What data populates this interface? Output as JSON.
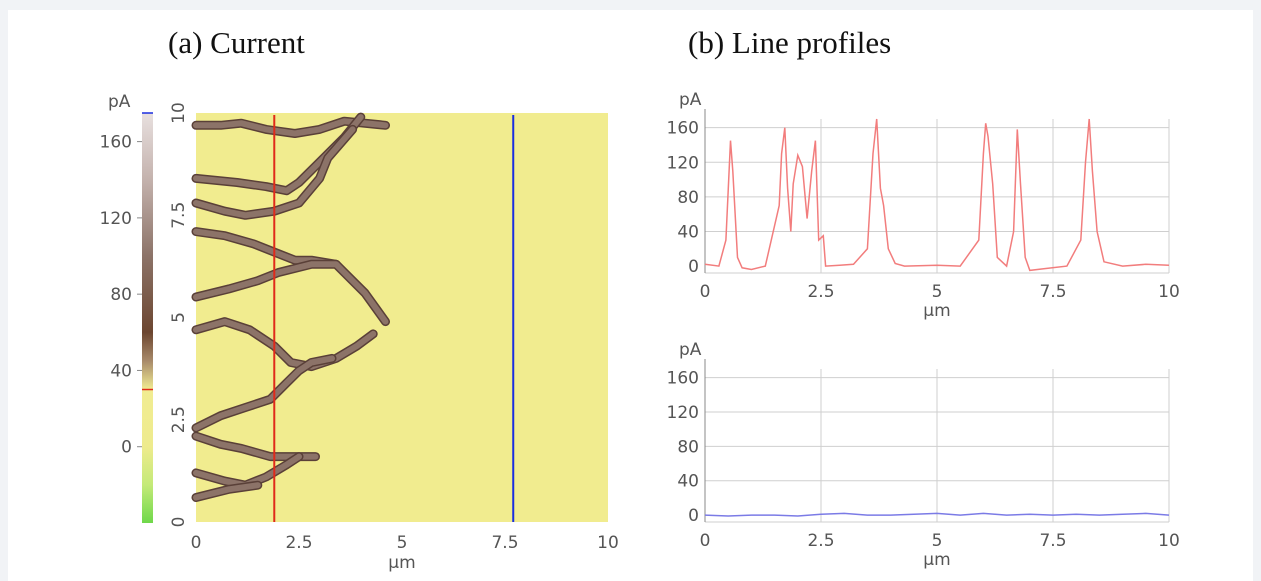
{
  "panels": {
    "a_title": "(a) Current",
    "b_title": "(b) Line profiles"
  },
  "colors": {
    "map_background": "#f1ec8f",
    "crack": "#8c7368",
    "crack_edge": "#5a4038",
    "red_line": "#e02a1a",
    "blue_line": "#1a2ee0",
    "red_profile": "#f27d7d",
    "blue_profile": "#7b7be6"
  },
  "chart_data": [
    {
      "type": "colorbar",
      "unit_label": "pA",
      "ticks": [
        "160",
        "120",
        "80",
        "40",
        "0"
      ],
      "tick_values": [
        160,
        120,
        80,
        40,
        0
      ],
      "range": [
        -40,
        175
      ],
      "gradient": [
        {
          "value": -40,
          "color": "#6fd84a"
        },
        {
          "value": -20,
          "color": "#c4ea78"
        },
        {
          "value": 0,
          "color": "#eeeb8d"
        },
        {
          "value": 30,
          "color": "#f1ec92"
        },
        {
          "value": 45,
          "color": "#a88a6a"
        },
        {
          "value": 60,
          "color": "#6c4630"
        },
        {
          "value": 100,
          "color": "#8c7368"
        },
        {
          "value": 140,
          "color": "#c4b2ad"
        },
        {
          "value": 175,
          "color": "#e8e0df"
        }
      ],
      "red_marker": 30,
      "blue_marker": 175
    },
    {
      "type": "heatmap",
      "title": "(a) Current",
      "xlabel": "µm",
      "x_ticks": [
        "0",
        "2.5",
        "5",
        "7.5",
        "10"
      ],
      "y_ticks": [
        "0",
        "2.5",
        "5",
        "7.5",
        "10"
      ],
      "xlim": [
        0,
        10
      ],
      "ylim": [
        0,
        10
      ],
      "background_value": 25,
      "crack_value": 140,
      "line_cuts": [
        {
          "name": "red",
          "x": 1.9
        },
        {
          "name": "blue",
          "x": 7.7
        }
      ],
      "cracks": [
        [
          [
            0.0,
            9.7
          ],
          [
            0.6,
            9.7
          ],
          [
            1.1,
            9.75
          ],
          [
            1.7,
            9.6
          ],
          [
            2.4,
            9.5
          ],
          [
            3.0,
            9.6
          ],
          [
            3.6,
            9.8
          ],
          [
            4.6,
            9.7
          ]
        ],
        [
          [
            0.0,
            8.4
          ],
          [
            1.0,
            8.3
          ],
          [
            1.7,
            8.2
          ],
          [
            2.2,
            8.1
          ],
          [
            2.5,
            8.3
          ],
          [
            3.0,
            8.8
          ],
          [
            3.6,
            9.4
          ],
          [
            4.0,
            9.9
          ]
        ],
        [
          [
            0.0,
            7.8
          ],
          [
            0.7,
            7.6
          ],
          [
            1.2,
            7.5
          ],
          [
            1.9,
            7.6
          ],
          [
            2.5,
            7.8
          ],
          [
            3.0,
            8.4
          ],
          [
            3.2,
            8.9
          ],
          [
            3.8,
            9.6
          ]
        ],
        [
          [
            0.0,
            7.1
          ],
          [
            0.7,
            7.0
          ],
          [
            1.4,
            6.8
          ],
          [
            1.9,
            6.6
          ],
          [
            2.4,
            6.4
          ],
          [
            2.8,
            6.4
          ],
          [
            3.4,
            6.3
          ]
        ],
        [
          [
            0.0,
            5.5
          ],
          [
            0.8,
            5.7
          ],
          [
            1.5,
            5.9
          ],
          [
            2.0,
            6.1
          ],
          [
            2.8,
            6.3
          ],
          [
            3.4,
            6.3
          ],
          [
            3.7,
            6.0
          ],
          [
            4.1,
            5.6
          ],
          [
            4.6,
            4.9
          ]
        ],
        [
          [
            0.0,
            4.7
          ],
          [
            0.7,
            4.9
          ],
          [
            1.3,
            4.7
          ],
          [
            1.9,
            4.3
          ],
          [
            2.3,
            3.9
          ],
          [
            2.8,
            3.8
          ],
          [
            3.4,
            4.0
          ],
          [
            3.9,
            4.3
          ],
          [
            4.3,
            4.6
          ]
        ],
        [
          [
            0.0,
            2.3
          ],
          [
            0.6,
            2.6
          ],
          [
            1.2,
            2.8
          ],
          [
            1.8,
            3.0
          ],
          [
            2.2,
            3.4
          ],
          [
            2.5,
            3.7
          ],
          [
            2.8,
            3.9
          ],
          [
            3.3,
            4.0
          ]
        ],
        [
          [
            0.0,
            2.1
          ],
          [
            0.6,
            1.9
          ],
          [
            1.1,
            1.8
          ],
          [
            1.8,
            1.6
          ],
          [
            2.4,
            1.6
          ],
          [
            2.9,
            1.6
          ]
        ],
        [
          [
            0.0,
            1.2
          ],
          [
            0.7,
            1.0
          ],
          [
            1.2,
            0.9
          ],
          [
            1.7,
            1.1
          ],
          [
            2.2,
            1.4
          ],
          [
            2.5,
            1.6
          ]
        ],
        [
          [
            0.0,
            0.6
          ],
          [
            0.8,
            0.8
          ],
          [
            1.5,
            0.9
          ]
        ]
      ]
    },
    {
      "type": "line",
      "name": "red line profile",
      "ylabel": "pA",
      "xlabel": "µm",
      "x_ticks": [
        "0",
        "2.5",
        "5",
        "7.5",
        "10"
      ],
      "y_ticks": [
        "0",
        "40",
        "80",
        "120",
        "160"
      ],
      "xlim": [
        0,
        10
      ],
      "ylim": [
        -8,
        170
      ],
      "x": [
        0,
        0.3,
        0.45,
        0.55,
        0.6,
        0.7,
        0.8,
        1.0,
        1.3,
        1.6,
        1.65,
        1.72,
        1.78,
        1.85,
        1.9,
        2.0,
        2.1,
        2.2,
        2.3,
        2.38,
        2.45,
        2.55,
        2.6,
        2.9,
        3.2,
        3.5,
        3.62,
        3.7,
        3.78,
        3.85,
        3.95,
        4.1,
        4.3,
        5.0,
        5.5,
        5.9,
        6.0,
        6.05,
        6.1,
        6.2,
        6.3,
        6.5,
        6.65,
        6.73,
        6.8,
        6.9,
        7.0,
        7.3,
        7.8,
        8.1,
        8.2,
        8.28,
        8.35,
        8.45,
        8.6,
        9.0,
        9.5,
        10.0
      ],
      "y": [
        2,
        0,
        30,
        145,
        110,
        10,
        -2,
        -4,
        0,
        70,
        130,
        160,
        90,
        40,
        95,
        128,
        115,
        55,
        110,
        145,
        30,
        35,
        0,
        1,
        2,
        20,
        130,
        170,
        90,
        70,
        20,
        3,
        0,
        1,
        0,
        30,
        130,
        165,
        150,
        95,
        10,
        0,
        40,
        158,
        95,
        10,
        -5,
        -3,
        0,
        30,
        120,
        170,
        110,
        40,
        5,
        0,
        2,
        1
      ]
    },
    {
      "type": "line",
      "name": "blue line profile",
      "ylabel": "pA",
      "xlabel": "µm",
      "x_ticks": [
        "0",
        "2.5",
        "5",
        "7.5",
        "10"
      ],
      "y_ticks": [
        "0",
        "40",
        "80",
        "120",
        "160"
      ],
      "xlim": [
        0,
        10
      ],
      "ylim": [
        -8,
        170
      ],
      "x": [
        0,
        0.5,
        1.0,
        1.5,
        2.0,
        2.5,
        3.0,
        3.5,
        4.0,
        4.5,
        5.0,
        5.5,
        6.0,
        6.5,
        7.0,
        7.5,
        8.0,
        8.5,
        9.0,
        9.5,
        10.0
      ],
      "y": [
        0,
        -1,
        0,
        0,
        -1,
        1,
        2,
        0,
        0,
        1,
        2,
        0,
        2,
        0,
        1,
        0,
        1,
        0,
        1,
        2,
        0
      ]
    }
  ]
}
